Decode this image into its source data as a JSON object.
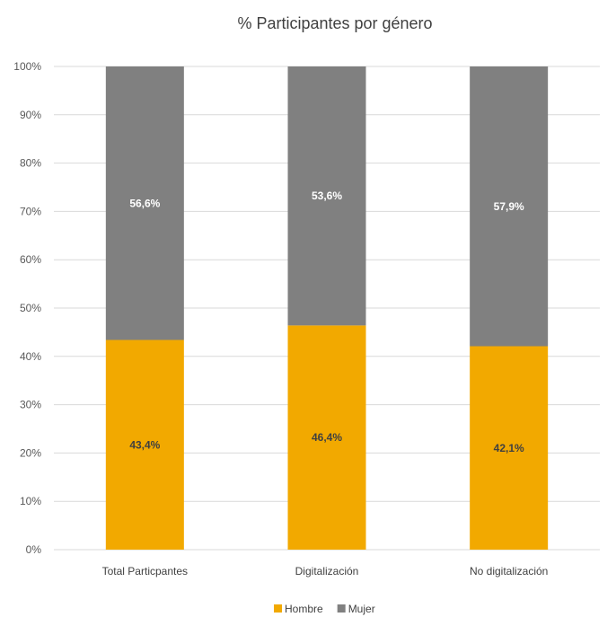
{
  "chart_data": {
    "type": "bar",
    "stacked": true,
    "title": "% Participantes por género",
    "categories": [
      "Total Particpantes",
      "Digitalización",
      "No digitalización"
    ],
    "series": [
      {
        "name": "Hombre",
        "values": [
          43.4,
          46.4,
          42.1
        ],
        "labels": [
          "43,4%",
          "46,4%",
          "42,1%"
        ],
        "color": "#f2a900",
        "label_color": "#404040"
      },
      {
        "name": "Mujer",
        "values": [
          56.6,
          53.6,
          57.9
        ],
        "labels": [
          "56,6%",
          "53,6%",
          "57,9%"
        ],
        "color": "#808080",
        "label_color": "#ffffff"
      }
    ],
    "ylim": [
      0,
      100
    ],
    "yticks": [
      "0%",
      "10%",
      "20%",
      "30%",
      "40%",
      "50%",
      "60%",
      "70%",
      "80%",
      "90%",
      "100%"
    ],
    "grid": true,
    "legend_position": "bottom"
  }
}
